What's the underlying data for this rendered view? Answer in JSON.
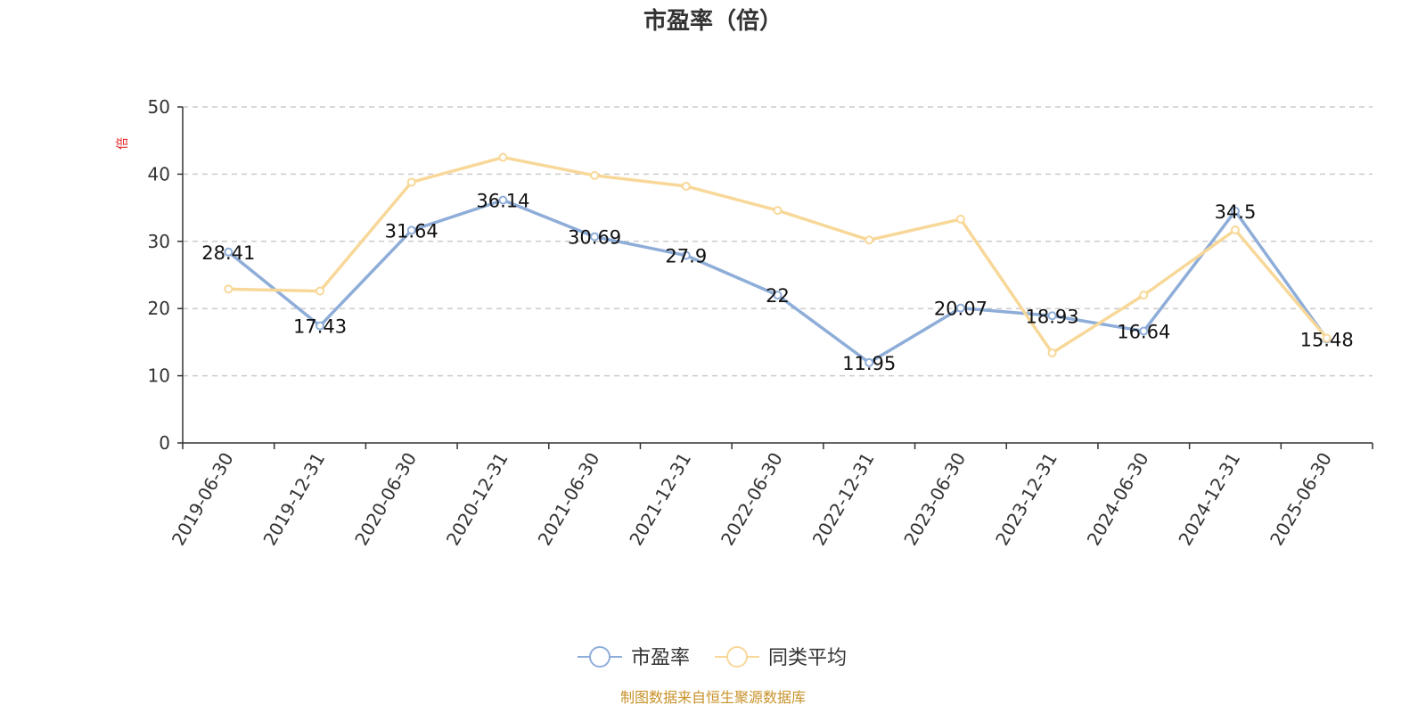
{
  "chart_data": {
    "type": "line",
    "title": "市盈率（倍）",
    "ylabel": "倍",
    "ylim": [
      0,
      50
    ],
    "yticks": [
      0,
      10,
      20,
      30,
      40,
      50
    ],
    "grid": "horizontal-dashed",
    "legend_position": "bottom-center",
    "categories": [
      "2019-06-30",
      "2019-12-31",
      "2020-06-30",
      "2020-12-31",
      "2021-06-30",
      "2021-12-31",
      "2022-06-30",
      "2022-12-31",
      "2023-06-30",
      "2023-12-31",
      "2024-06-30",
      "2024-12-31",
      "2025-06-30"
    ],
    "series": [
      {
        "name": "市盈率",
        "color": "#8eadd8",
        "values": [
          28.41,
          17.43,
          31.64,
          36.14,
          30.69,
          27.9,
          22,
          11.95,
          20.07,
          18.93,
          16.64,
          34.5,
          15.48
        ],
        "labels": [
          "28.41",
          "17.43",
          "31.64",
          "36.14",
          "30.69",
          "27.9",
          "22",
          "11.95",
          "20.07",
          "18.93",
          "16.64",
          "34.5",
          "15.48"
        ]
      },
      {
        "name": "同类平均",
        "color": "#f8d899",
        "values": [
          22.9,
          22.6,
          38.8,
          42.5,
          39.8,
          38.2,
          34.6,
          30.2,
          33.3,
          13.4,
          22.0,
          31.7,
          15.6
        ]
      }
    ]
  },
  "source_note": "制图数据来自恒生聚源数据库"
}
